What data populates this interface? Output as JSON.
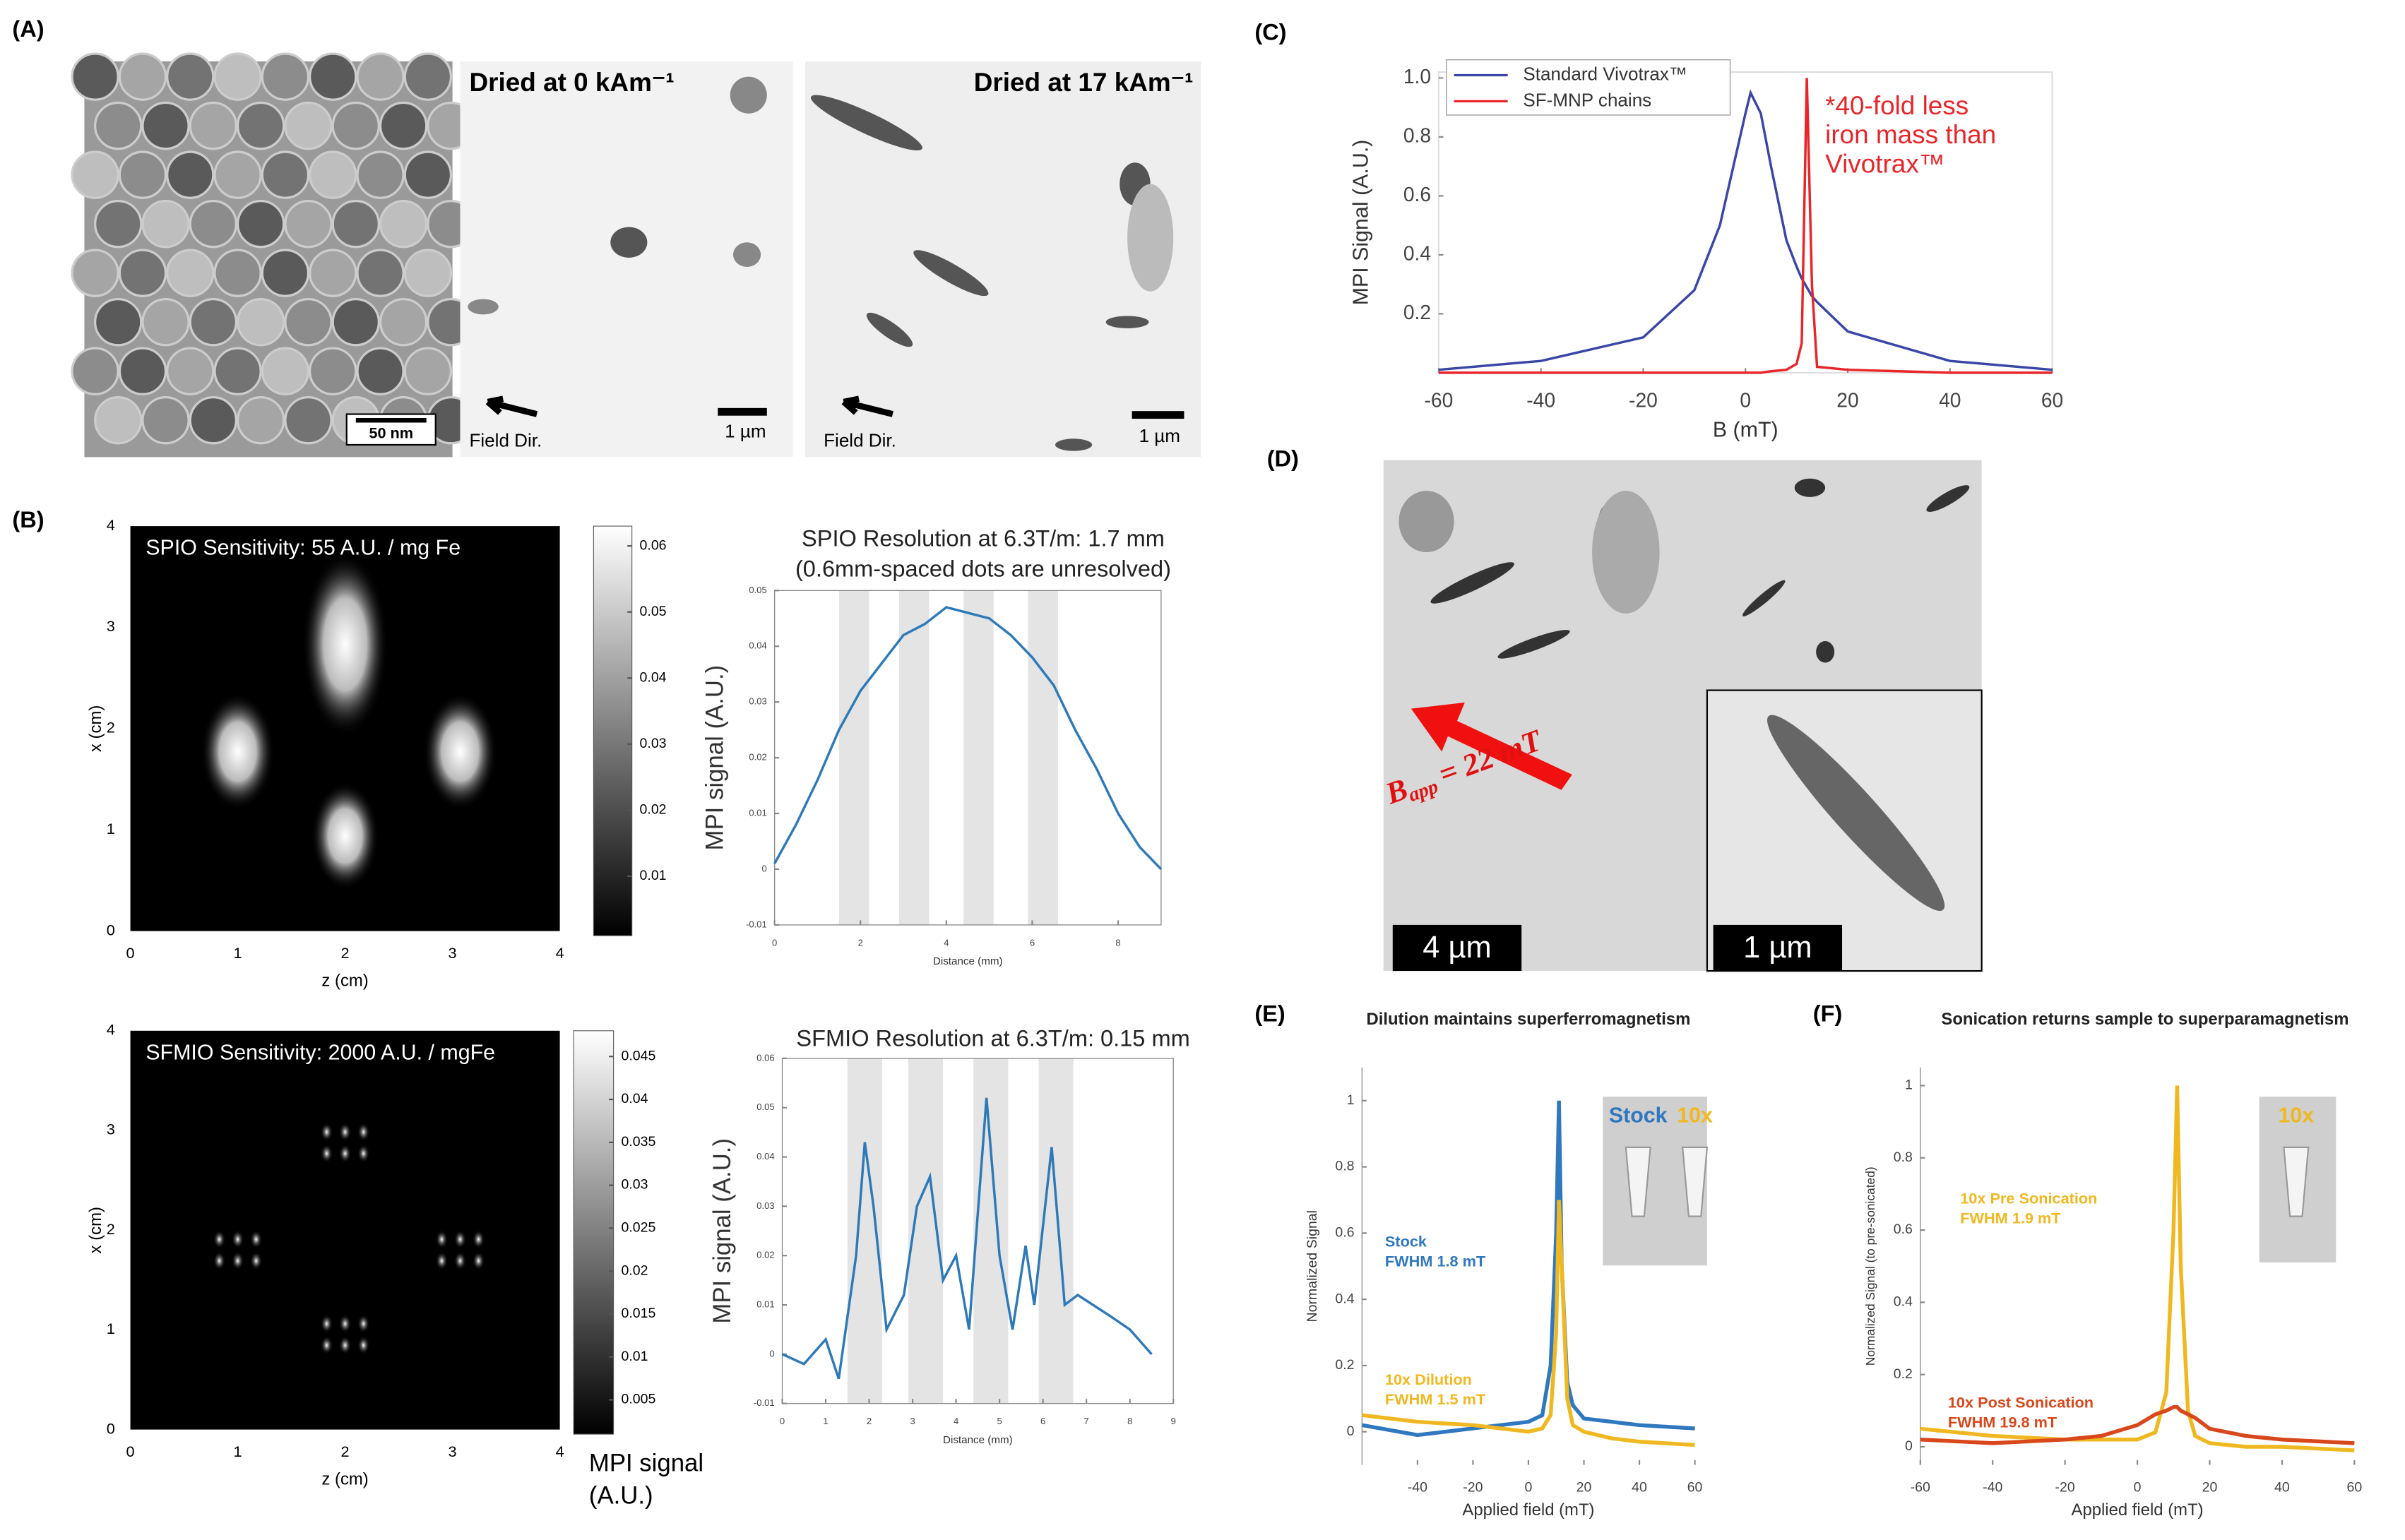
{
  "panel_labels": [
    "(A)",
    "(B)",
    "(C)",
    "(D)",
    "(E)",
    "(F)"
  ],
  "panel_a": {
    "captions": [
      "Dried at 0 kAm⁻¹",
      "Dried at 17 kAm⁻¹"
    ],
    "scale_bars": [
      "50 nm",
      "1 µm",
      "1 µm"
    ],
    "field_labels": [
      "Field Dir.",
      "Field Dir."
    ]
  },
  "panel_d": {
    "field_symbol": "B",
    "field_subscript": "app",
    "field_value": "= 22 mT",
    "scale_bars": [
      "4 µm",
      "1 µm"
    ]
  },
  "chart_data": [
    {
      "type": "line",
      "ylabel": "MPI Signal (A.U.)",
      "xlabel": "B (mT)",
      "xlim": [
        -60,
        60
      ],
      "xticks": [
        -60,
        -40,
        -20,
        0,
        20,
        40,
        60
      ],
      "ylim": [
        0,
        1.02
      ],
      "yticks": [
        0.2,
        0.4,
        0.6,
        0.8,
        {
          "value": 1,
          "label": "1.0"
        }
      ],
      "x": [
        -60,
        -40,
        -20,
        -10,
        -5,
        0,
        1,
        3,
        5,
        8,
        10,
        11,
        12,
        13,
        14,
        20,
        40,
        60
      ],
      "series": [
        {
          "name": "Standard Vivotrax™",
          "color": "#3a46a8",
          "values": [
            0.01,
            0.04,
            0.12,
            0.28,
            0.5,
            0.88,
            0.95,
            0.88,
            0.7,
            0.45,
            0.36,
            0.32,
            0.29,
            0.26,
            0.24,
            0.14,
            0.04,
            0.01
          ]
        },
        {
          "name": "SF-MNP chains",
          "color": "#e8262a",
          "values": [
            0,
            0,
            0,
            0,
            0,
            0,
            0,
            0,
            0.005,
            0.01,
            0.03,
            0.1,
            1.0,
            0.3,
            0.02,
            0.01,
            0,
            0
          ]
        }
      ],
      "legend": "upper left",
      "annotation": [
        "*40-fold less",
        "iron mass than",
        "Vivotrax™"
      ]
    },
    {
      "type": "heatmap",
      "title": "SPIO Sensitivity: 55 A.U. / mg Fe",
      "xlabel": "z (cm)",
      "ylabel": "x (cm)",
      "xlim": [
        0,
        4
      ],
      "xticks": [
        0,
        1,
        2,
        3,
        4
      ],
      "ylim": [
        0,
        4
      ],
      "yticks": [
        0,
        1,
        2,
        3,
        4
      ],
      "colorbar": {
        "lim": [
          0.001,
          0.063
        ],
        "ticks": [
          0.01,
          0.02,
          0.03,
          0.04,
          0.05,
          0.06
        ]
      }
    },
    {
      "type": "line",
      "title": "SPIO Resolution at 6.3T/m: 1.7 mm",
      "subtitle": "(0.6mm-spaced dots are unresolved)",
      "xlabel": "Distance (mm)",
      "ylabel": "MPI signal (A.U.)",
      "xlim": [
        0,
        9
      ],
      "xticks": [
        0,
        2,
        4,
        6,
        8
      ],
      "ylim": [
        -0.01,
        0.05
      ],
      "yticks": [
        -0.01,
        0,
        0.01,
        0.02,
        0.03,
        0.04,
        0.05
      ],
      "bands": [
        [
          1.5,
          2.2
        ],
        [
          2.9,
          3.6
        ],
        [
          4.4,
          5.1
        ],
        [
          5.9,
          6.6
        ]
      ],
      "x": [
        0,
        0.5,
        1,
        1.5,
        2,
        2.5,
        3,
        3.5,
        4,
        4.5,
        5,
        5.5,
        6,
        6.5,
        7,
        7.5,
        8,
        8.5,
        9
      ],
      "series": [
        {
          "color": "#2e7ab8",
          "values": [
            0.001,
            0.008,
            0.016,
            0.025,
            0.032,
            0.037,
            0.042,
            0.044,
            0.047,
            0.046,
            0.045,
            0.042,
            0.038,
            0.033,
            0.025,
            0.018,
            0.01,
            0.004,
            0
          ]
        }
      ]
    },
    {
      "type": "heatmap",
      "title": "SFMIO Sensitivity: 2000 A.U. / mgFe",
      "xlabel": "z (cm)",
      "ylabel": "x (cm)",
      "xlim": [
        0,
        4
      ],
      "xticks": [
        0,
        1,
        2,
        3,
        4
      ],
      "ylim": [
        0,
        4
      ],
      "yticks": [
        0,
        1,
        2,
        3,
        4
      ],
      "colorbar": {
        "lim": [
          0.001,
          0.048
        ],
        "ticks": [
          0.005,
          0.01,
          0.015,
          0.02,
          0.025,
          0.03,
          0.035,
          0.04,
          0.045
        ],
        "label": [
          "MPI signal",
          "(A.U.)"
        ]
      }
    },
    {
      "type": "line",
      "title": "SFMIO Resolution at 6.3T/m: 0.15 mm",
      "xlabel": "Distance (mm)",
      "ylabel": "MPI signal (A.U.)",
      "xlim": [
        0,
        9
      ],
      "xticks": [
        0,
        1,
        2,
        3,
        4,
        5,
        6,
        7,
        8,
        9
      ],
      "ylim": [
        -0.01,
        0.06
      ],
      "yticks": [
        -0.01,
        0,
        0.01,
        0.02,
        0.03,
        0.04,
        0.05,
        0.06
      ],
      "bands": [
        [
          1.5,
          2.3
        ],
        [
          2.9,
          3.7
        ],
        [
          4.4,
          5.2
        ],
        [
          5.9,
          6.7
        ]
      ],
      "x": [
        0,
        0.5,
        1,
        1.3,
        1.7,
        1.9,
        2.1,
        2.4,
        2.8,
        3.1,
        3.4,
        3.7,
        4,
        4.3,
        4.7,
        5,
        5.3,
        5.6,
        5.8,
        6.2,
        6.5,
        6.8,
        7.5,
        8,
        8.5
      ],
      "series": [
        {
          "color": "#2e7ab8",
          "values": [
            0,
            -0.002,
            0.003,
            -0.005,
            0.02,
            0.043,
            0.03,
            0.005,
            0.012,
            0.03,
            0.036,
            0.015,
            0.02,
            0.005,
            0.052,
            0.02,
            0.005,
            0.022,
            0.01,
            0.042,
            0.01,
            0.012,
            0.008,
            0.005,
            0
          ]
        }
      ]
    },
    {
      "type": "line",
      "title": "Dilution maintains superferromagnetism",
      "xlabel": "Applied field (mT)",
      "ylabel": "Normalized Signal",
      "xlim": [
        -60,
        60
      ],
      "xticks": [
        -40,
        -20,
        0,
        20,
        40,
        60
      ],
      "ylim": [
        -0.1,
        1.1
      ],
      "yticks": [
        0,
        0.2,
        0.4,
        0.6,
        0.8,
        1
      ],
      "x": [
        -60,
        -40,
        -20,
        0,
        5,
        8,
        10,
        11,
        12,
        14,
        16,
        20,
        30,
        40,
        60
      ],
      "series": [
        {
          "name": "Stock",
          "color": "#2f78c0",
          "values": [
            0.02,
            -0.01,
            0.01,
            0.03,
            0.05,
            0.2,
            0.6,
            1.0,
            0.5,
            0.15,
            0.08,
            0.04,
            0.03,
            0.02,
            0.01
          ]
        },
        {
          "name": "10x Dilution",
          "color": "#f0b820",
          "values": [
            0.05,
            0.03,
            0.02,
            0,
            0.01,
            0.05,
            0.3,
            0.7,
            0.5,
            0.1,
            0.02,
            0,
            -0.02,
            -0.03,
            -0.04
          ]
        }
      ],
      "annotations": [
        [
          "Stock",
          "FWHM 1.8 mT"
        ],
        [
          "10x Dilution",
          "FWHM 1.5 mT"
        ]
      ],
      "inset_labels": [
        "Stock",
        "10x"
      ]
    },
    {
      "type": "line",
      "title": "Sonication returns sample to superparamagnetism",
      "xlabel": "Applied field (mT)",
      "ylabel": "Normalized Signal (to pre-sonicated)",
      "xlim": [
        -60,
        60
      ],
      "xticks": [
        -60,
        -40,
        -20,
        0,
        20,
        40,
        60
      ],
      "ylim": [
        -0.05,
        1.05
      ],
      "yticks": [
        0,
        0.2,
        0.4,
        0.6,
        0.8,
        1
      ],
      "x": [
        -60,
        -40,
        -20,
        -10,
        0,
        5,
        8,
        10,
        11,
        12,
        14,
        16,
        20,
        30,
        40,
        60
      ],
      "series": [
        {
          "name": "10x Pre Sonication",
          "color": "#f0b820",
          "values": [
            0.05,
            0.03,
            0.02,
            0.02,
            0.02,
            0.04,
            0.15,
            0.6,
            1.0,
            0.5,
            0.1,
            0.03,
            0.01,
            0,
            0,
            -0.01
          ]
        },
        {
          "name": "10x Post Sonication",
          "color": "#d9481c",
          "values": [
            0.02,
            0.01,
            0.02,
            0.03,
            0.06,
            0.09,
            0.1,
            0.11,
            0.11,
            0.1,
            0.09,
            0.08,
            0.05,
            0.03,
            0.02,
            0.01
          ]
        }
      ],
      "annotations": [
        [
          "10x Pre Sonication",
          "FWHM 1.9 mT"
        ],
        [
          "10x Post Sonication",
          "FWHM 19.8 mT"
        ]
      ],
      "inset_labels": [
        "10x"
      ]
    }
  ]
}
